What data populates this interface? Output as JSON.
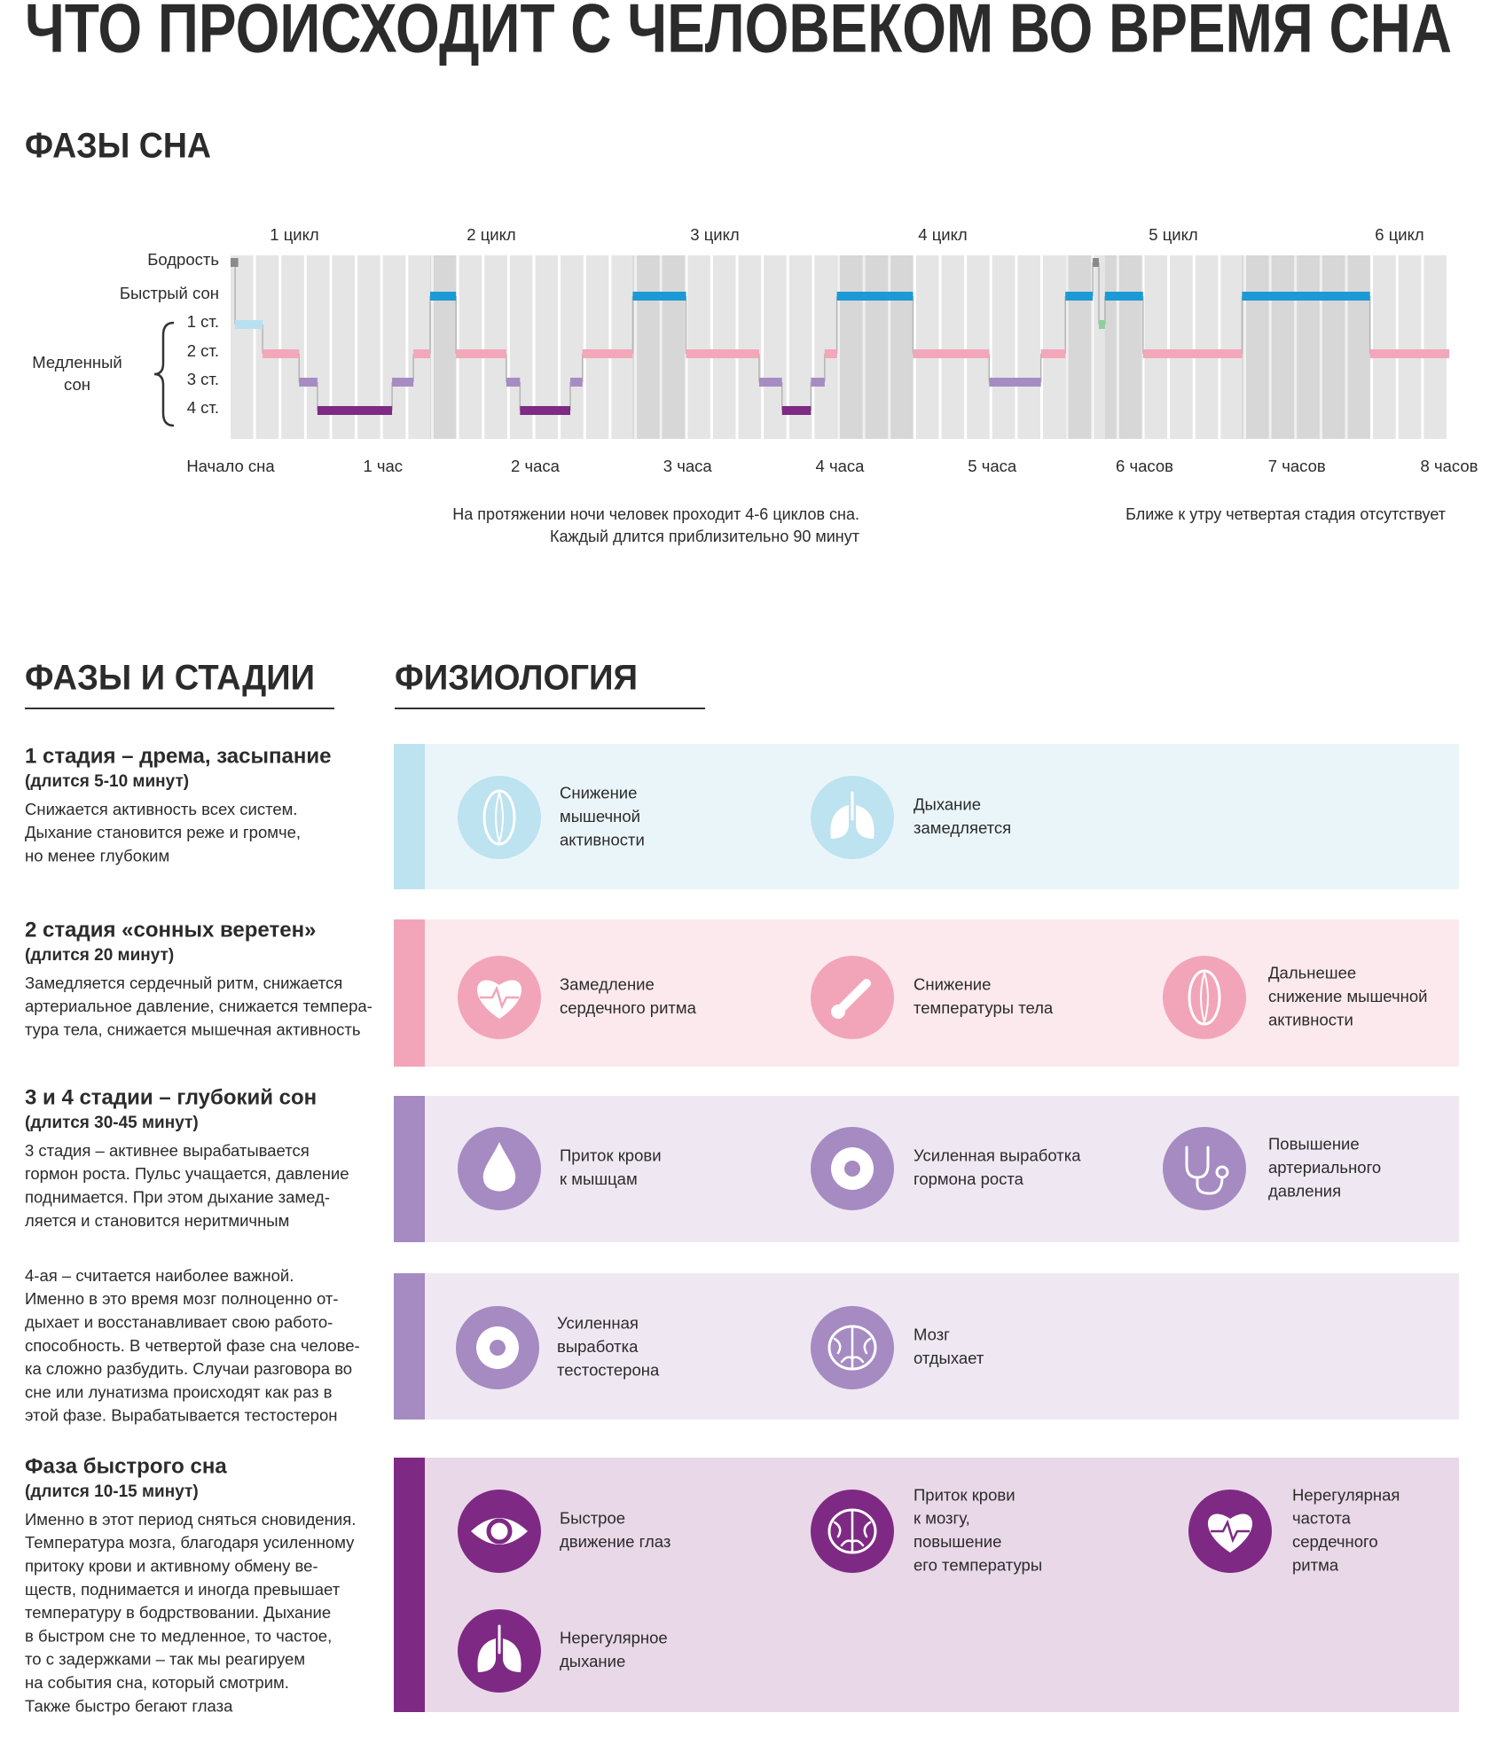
{
  "title": "ЧТО ПРОИСХОДИТ С ЧЕЛОВЕКОМ ВО ВРЕМЯ СНА",
  "chart_data": {
    "type": "hypnogram",
    "title": "ФАЗЫ СНА",
    "levels": [
      "Бодрость",
      "Быстрый сон",
      "1 ст.",
      "2 ст.",
      "3 ст.",
      "4 ст."
    ],
    "level_colors": [
      "#8a8a8a",
      "#1b9ad6",
      "#b9e0f1",
      "#f2a7bb",
      "#a68cc3",
      "#7d2b83"
    ],
    "group_label": [
      "Медленный",
      "сон"
    ],
    "cycles": [
      "1 цикл",
      "2 цикл",
      "3 цикл",
      "4 цикл",
      "5 цикл",
      "6 цикл"
    ],
    "xlim": [
      0,
      8
    ],
    "xticks": [
      {
        "value": 0,
        "label": "Начало сна"
      },
      {
        "value": 1,
        "label": "1 час"
      },
      {
        "value": 2,
        "label": "2 часа"
      },
      {
        "value": 3,
        "label": "3 часа"
      },
      {
        "value": 4,
        "label": "4 часа"
      },
      {
        "value": 5,
        "label": "5 часа"
      },
      {
        "value": 6,
        "label": "6 часов"
      },
      {
        "value": 7,
        "label": "7 часов"
      },
      {
        "value": 8,
        "label": "8 часов"
      }
    ],
    "segments": [
      {
        "stage": "Бодрость",
        "from": 0,
        "to": 0.05
      },
      {
        "stage": "1 ст.",
        "from": 0.03,
        "to": 0.21
      },
      {
        "stage": "2 ст.",
        "from": 0.21,
        "to": 0.45
      },
      {
        "stage": "3 ст.",
        "from": 0.45,
        "to": 0.57
      },
      {
        "stage": "4 ст.",
        "from": 0.57,
        "to": 1.06
      },
      {
        "stage": "3 ст.",
        "from": 1.06,
        "to": 1.2
      },
      {
        "stage": "2 ст.",
        "from": 1.2,
        "to": 1.31
      },
      {
        "stage": "Быстрый сон",
        "from": 1.31,
        "to": 1.48
      },
      {
        "stage": "2 ст.",
        "from": 1.48,
        "to": 1.81
      },
      {
        "stage": "3 ст.",
        "from": 1.81,
        "to": 1.9
      },
      {
        "stage": "4 ст.",
        "from": 1.9,
        "to": 2.23
      },
      {
        "stage": "3 ст.",
        "from": 2.23,
        "to": 2.31
      },
      {
        "stage": "2 ст.",
        "from": 2.31,
        "to": 2.64
      },
      {
        "stage": "Быстрый сон",
        "from": 2.64,
        "to": 2.99
      },
      {
        "stage": "2 ст.",
        "from": 2.99,
        "to": 3.47
      },
      {
        "stage": "3 ст.",
        "from": 3.47,
        "to": 3.62
      },
      {
        "stage": "4 ст.",
        "from": 3.62,
        "to": 3.81
      },
      {
        "stage": "3 ст.",
        "from": 3.81,
        "to": 3.9
      },
      {
        "stage": "2 ст.",
        "from": 3.9,
        "to": 3.98
      },
      {
        "stage": "Быстрый сон",
        "from": 3.98,
        "to": 4.48
      },
      {
        "stage": "2 ст.",
        "from": 4.48,
        "to": 4.98
      },
      {
        "stage": "3 ст.",
        "from": 4.98,
        "to": 5.32
      },
      {
        "stage": "2 ст.",
        "from": 5.32,
        "to": 5.48
      },
      {
        "stage": "Быстрый сон",
        "from": 5.48,
        "to": 5.66
      },
      {
        "stage": "Бодрость",
        "from": 5.66,
        "to": 5.7
      },
      {
        "stage": "1 ст.",
        "from": 5.7,
        "to": 5.74,
        "color": "#8fcf9f"
      },
      {
        "stage": "Быстрый сон",
        "from": 5.74,
        "to": 5.99
      },
      {
        "stage": "2 ст.",
        "from": 5.99,
        "to": 6.64
      },
      {
        "stage": "Быстрый сон",
        "from": 6.64,
        "to": 7.48
      },
      {
        "stage": "2 ст.",
        "from": 7.48,
        "to": 8
      }
    ],
    "notes": [
      [
        "На протяжении ночи человек проходит 4-6 циклов сна.",
        "Каждый длится приблизительно 90 минут"
      ],
      [
        "Ближе к утру четвертая стадия отсутствует"
      ]
    ]
  },
  "stages_heading": "ФАЗЫ И СТАДИИ",
  "physiology_heading": "ФИЗИОЛОГИЯ",
  "stages": [
    {
      "heading": "1 стадия – дрема, засыпание",
      "duration": "(длится 5-10 минут)",
      "body": [
        "Снижается активность всех систем.",
        "Дыхание становится реже и громче,",
        "но менее глубоким"
      ]
    },
    {
      "heading": "2 стадия «сонных веретен»",
      "duration": "(длится 20 минут)",
      "body": [
        "Замедляется сердечный ритм, снижается",
        "артериальное давление, снижается темпера-",
        "тура тела, снижается мышечная активность"
      ]
    },
    {
      "heading": "3 и 4 стадии – глубокий сон",
      "duration": "(длится 30-45 минут)",
      "body": [
        "3 стадия – активнее вырабатывается",
        "гормон роста. Пульс учащается, давление",
        "поднимается. При этом дыхание замед-",
        "ляется и становится неритмичным"
      ]
    },
    {
      "body": [
        "4-ая – считается наиболее важной.",
        "Именно в это время мозг полноценно от-",
        "дыхает и восстанавливает свою работо-",
        "способность. В четвертой фазе сна челове-",
        "ка сложно разбудить. Случаи разговора во",
        "сне или лунатизма происходят как раз в",
        "этой фазе. Вырабатывается тестостерон"
      ]
    },
    {
      "heading": "Фаза быстрого сна",
      "duration": "(длится 10-15 минут)",
      "body": [
        "Именно в этот период сняться сновидения.",
        "Температура мозга, благодаря усиленному",
        "притоку крови и активному обмену ве-",
        "ществ, поднимается и иногда превышает",
        "температуру в бодрствовании. Дыхание",
        "в быстром сне то медленное, то частое,",
        "то с задержками – так мы реагируем",
        "на события сна, который смотрим.",
        "Также быстро бегают глаза"
      ]
    }
  ],
  "physiology": [
    {
      "items": [
        {
          "lines": [
            "Снижение",
            "мышечной",
            "активности"
          ]
        },
        {
          "lines": [
            "Дыхание",
            "замедляется"
          ]
        }
      ]
    },
    {
      "items": [
        {
          "lines": [
            "Замедление",
            "сердечного ритма"
          ]
        },
        {
          "lines": [
            "Снижение",
            "температуры тела"
          ]
        },
        {
          "lines": [
            "Дальнешее",
            "снижение мышечной",
            "активности"
          ]
        }
      ]
    },
    {
      "items": [
        {
          "lines": [
            "Приток крови",
            "к мышцам"
          ]
        },
        {
          "lines": [
            "Усиленная выработка",
            "гормона роста"
          ]
        },
        {
          "lines": [
            "Повышение",
            "артериального",
            "давления"
          ]
        }
      ]
    },
    {
      "items": [
        {
          "lines": [
            "Усиленная",
            "выработка",
            "тестостерона"
          ]
        },
        {
          "lines": [
            "Мозг",
            "отдыхает"
          ]
        }
      ]
    },
    {
      "items": [
        {
          "lines": [
            "Быстрое",
            "движение глаз"
          ]
        },
        {
          "lines": [
            "Приток крови",
            "к мозгу,",
            "повышение",
            "его температуры"
          ]
        },
        {
          "lines": [
            "Нерегулярная",
            "частота",
            "сердечного",
            "ритма"
          ]
        },
        {
          "lines": [
            "Нерегулярное",
            "дыхание"
          ]
        }
      ]
    }
  ]
}
